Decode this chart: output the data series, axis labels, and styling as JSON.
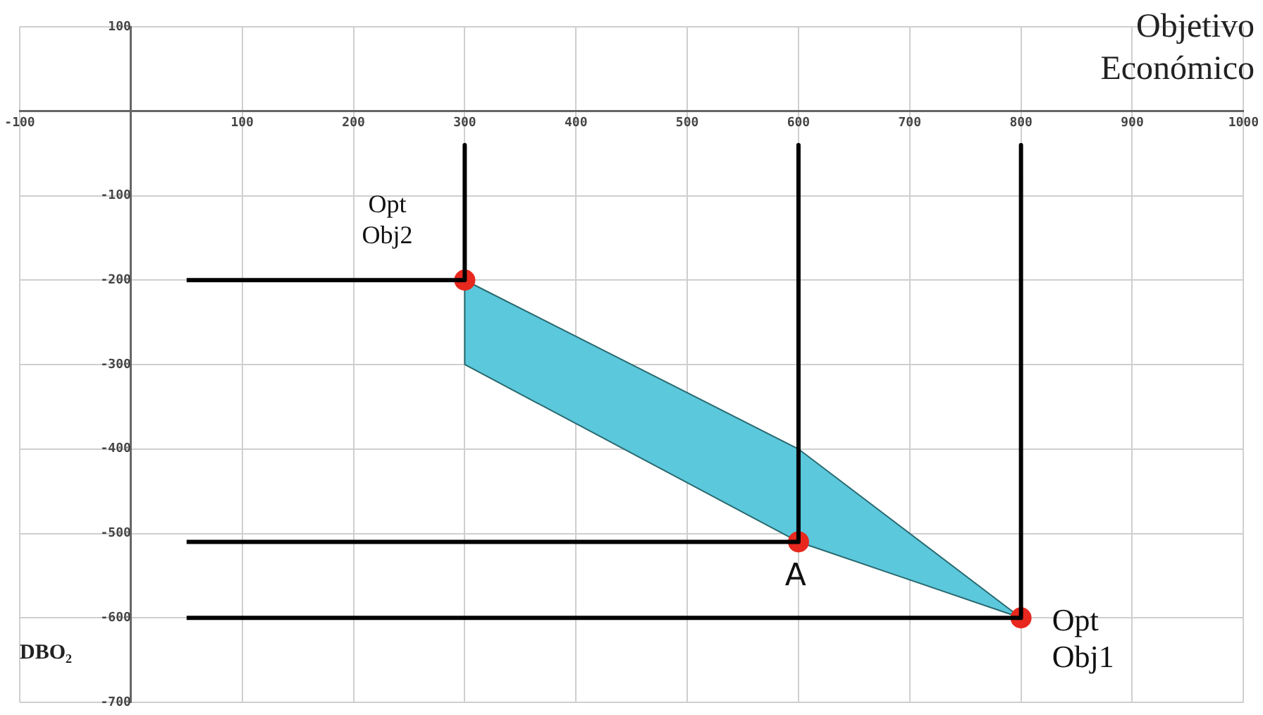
{
  "chart_data": {
    "type": "line",
    "xlabel": "Objetivo\nEconómico",
    "ylabel": "DBO₂",
    "xlim": [
      -100,
      1000
    ],
    "xticks": [
      -100,
      100,
      200,
      300,
      400,
      500,
      600,
      700,
      800,
      900,
      1000
    ],
    "ylim": [
      -700,
      100
    ],
    "yticks": [
      100,
      -100,
      -200,
      -300,
      -400,
      -500,
      -600,
      -700
    ],
    "grid": true,
    "legend": false,
    "series": [
      {
        "type": "area",
        "color": "#5bc8dc",
        "x": [
          300,
          600,
          800,
          600,
          300,
          300
        ],
        "values": [
          -200,
          -400,
          -600,
          -510,
          -300,
          -200
        ]
      },
      {
        "type": "line",
        "color": "#000000",
        "x": [
          300,
          300
        ],
        "values": [
          -40,
          -200
        ]
      },
      {
        "type": "line",
        "color": "#000000",
        "x": [
          600,
          600
        ],
        "values": [
          -40,
          -510
        ]
      },
      {
        "type": "line",
        "color": "#000000",
        "x": [
          800,
          800
        ],
        "values": [
          -40,
          -600
        ]
      },
      {
        "type": "line",
        "color": "#000000",
        "x": [
          50,
          300
        ],
        "values": [
          -200,
          -200
        ]
      },
      {
        "type": "line",
        "color": "#000000",
        "x": [
          50,
          600
        ],
        "values": [
          -510,
          -510
        ]
      },
      {
        "type": "line",
        "color": "#000000",
        "x": [
          50,
          800
        ],
        "values": [
          -600,
          -600
        ]
      },
      {
        "type": "scatter",
        "color": "#e8281e",
        "x": [
          300,
          600,
          800
        ],
        "values": [
          -200,
          -510,
          -600
        ]
      }
    ],
    "annotations": [
      {
        "text": "Opt\nObj2",
        "x": 300,
        "y": -200
      },
      {
        "text": "A",
        "x": 600,
        "y": -510
      },
      {
        "text": "Opt\nObj1",
        "x": 800,
        "y": -600
      }
    ]
  }
}
